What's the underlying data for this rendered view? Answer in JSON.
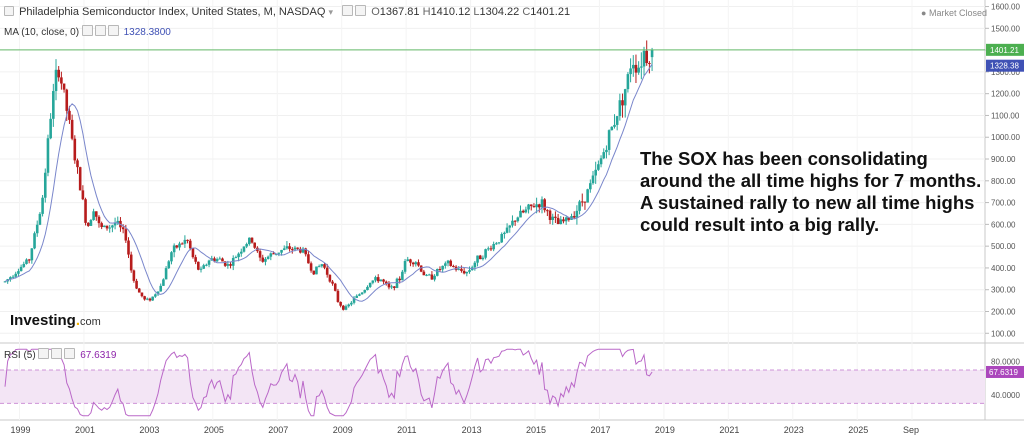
{
  "header": {
    "symbol_title": "Philadelphia Semiconductor Index, United States, M, NASDAQ",
    "ohlc": {
      "o_label": "O",
      "o_value": "1367.81",
      "h_label": "H",
      "h_value": "1410.12",
      "l_label": "L",
      "l_value": "1304.22",
      "c_label": "C",
      "c_value": "1401.21"
    },
    "ma_label": "MA (10, close, 0)",
    "ma_value": "1328.3800",
    "market_status": "Market Closed",
    "rsi_label": "RSI (5)",
    "rsi_value": "67.6319"
  },
  "annotation_lines": [
    "The SOX has been consolidating",
    "around the all time highs for 7 months.",
    "A sustained rally to new all time highs",
    "could result into a big rally."
  ],
  "logo": {
    "main": "Investing",
    "suffix": "com"
  },
  "colors": {
    "up": "#26a69a",
    "down": "#b71c1c",
    "ma_line": "#7986cb",
    "last_price_line": "#66bb6a",
    "last_price_badge": "#4caf50",
    "ma_badge": "#3f51b5",
    "rsi_line": "#ba68c8",
    "rsi_band": "#f3e5f5",
    "rsi_band_border": "#ce93d8"
  },
  "chart_data": [
    {
      "type": "candlestick",
      "title": "Philadelphia Semiconductor Index, United States, M, NASDAQ",
      "x_axis_ticks": [
        "1999",
        "2001",
        "2003",
        "2005",
        "2007",
        "2009",
        "2011",
        "2013",
        "2015",
        "2017",
        "2019",
        "2021",
        "2023",
        "2025",
        "Sep"
      ],
      "y_axis_ticks": [
        100,
        200,
        300,
        400,
        500,
        600,
        700,
        800,
        900,
        1000,
        1100,
        1200,
        1300,
        1400,
        1500,
        1600
      ],
      "ylim": [
        60,
        1630
      ],
      "last_price_label": "1401.21",
      "ma_last_label": "1328.38",
      "price_points": [
        [
          1998.5,
          330
        ],
        [
          1999.3,
          440
        ],
        [
          1999.7,
          700
        ],
        [
          2000.0,
          1150
        ],
        [
          2000.2,
          1330
        ],
        [
          2000.5,
          1100
        ],
        [
          2000.7,
          920
        ],
        [
          2000.9,
          760
        ],
        [
          2001.1,
          580
        ],
        [
          2001.3,
          680
        ],
        [
          2001.5,
          580
        ],
        [
          2001.8,
          590
        ],
        [
          2002.0,
          610
        ],
        [
          2002.3,
          540
        ],
        [
          2002.5,
          360
        ],
        [
          2002.7,
          290
        ],
        [
          2002.9,
          250
        ],
        [
          2003.1,
          260
        ],
        [
          2003.4,
          320
        ],
        [
          2003.7,
          470
        ],
        [
          2003.9,
          500
        ],
        [
          2004.2,
          530
        ],
        [
          2004.4,
          440
        ],
        [
          2004.6,
          380
        ],
        [
          2004.9,
          440
        ],
        [
          2005.2,
          440
        ],
        [
          2005.5,
          410
        ],
        [
          2005.8,
          470
        ],
        [
          2006.0,
          510
        ],
        [
          2006.2,
          530
        ],
        [
          2006.5,
          430
        ],
        [
          2006.8,
          460
        ],
        [
          2007.1,
          480
        ],
        [
          2007.4,
          490
        ],
        [
          2007.8,
          480
        ],
        [
          2008.1,
          380
        ],
        [
          2008.4,
          420
        ],
        [
          2008.7,
          330
        ],
        [
          2008.9,
          240
        ],
        [
          2009.1,
          210
        ],
        [
          2009.4,
          260
        ],
        [
          2009.7,
          300
        ],
        [
          2009.9,
          340
        ],
        [
          2010.2,
          350
        ],
        [
          2010.5,
          300
        ],
        [
          2010.8,
          350
        ],
        [
          2011.0,
          440
        ],
        [
          2011.3,
          430
        ],
        [
          2011.6,
          360
        ],
        [
          2011.8,
          360
        ],
        [
          2012.0,
          390
        ],
        [
          2012.3,
          420
        ],
        [
          2012.6,
          390
        ],
        [
          2012.9,
          380
        ],
        [
          2013.2,
          440
        ],
        [
          2013.5,
          480
        ],
        [
          2013.8,
          520
        ],
        [
          2014.1,
          560
        ],
        [
          2014.4,
          630
        ],
        [
          2014.7,
          660
        ],
        [
          2015.0,
          690
        ],
        [
          2015.2,
          700
        ],
        [
          2015.5,
          630
        ],
        [
          2015.7,
          600
        ],
        [
          2016.0,
          620
        ],
        [
          2016.3,
          670
        ],
        [
          2016.6,
          740
        ],
        [
          2016.9,
          840
        ],
        [
          2017.1,
          920
        ],
        [
          2017.4,
          1050
        ],
        [
          2017.7,
          1180
        ],
        [
          2017.9,
          1270
        ],
        [
          2018.0,
          1370
        ],
        [
          2018.2,
          1320
        ],
        [
          2018.4,
          1400
        ],
        [
          2018.5,
          1360
        ],
        [
          2018.6,
          1401
        ]
      ],
      "rsi": {
        "label": "RSI (5)",
        "ticks": [
          40,
          80
        ],
        "ylim": [
          10,
          100
        ],
        "band": [
          30,
          70
        ],
        "last_value": "67.6319"
      }
    }
  ]
}
